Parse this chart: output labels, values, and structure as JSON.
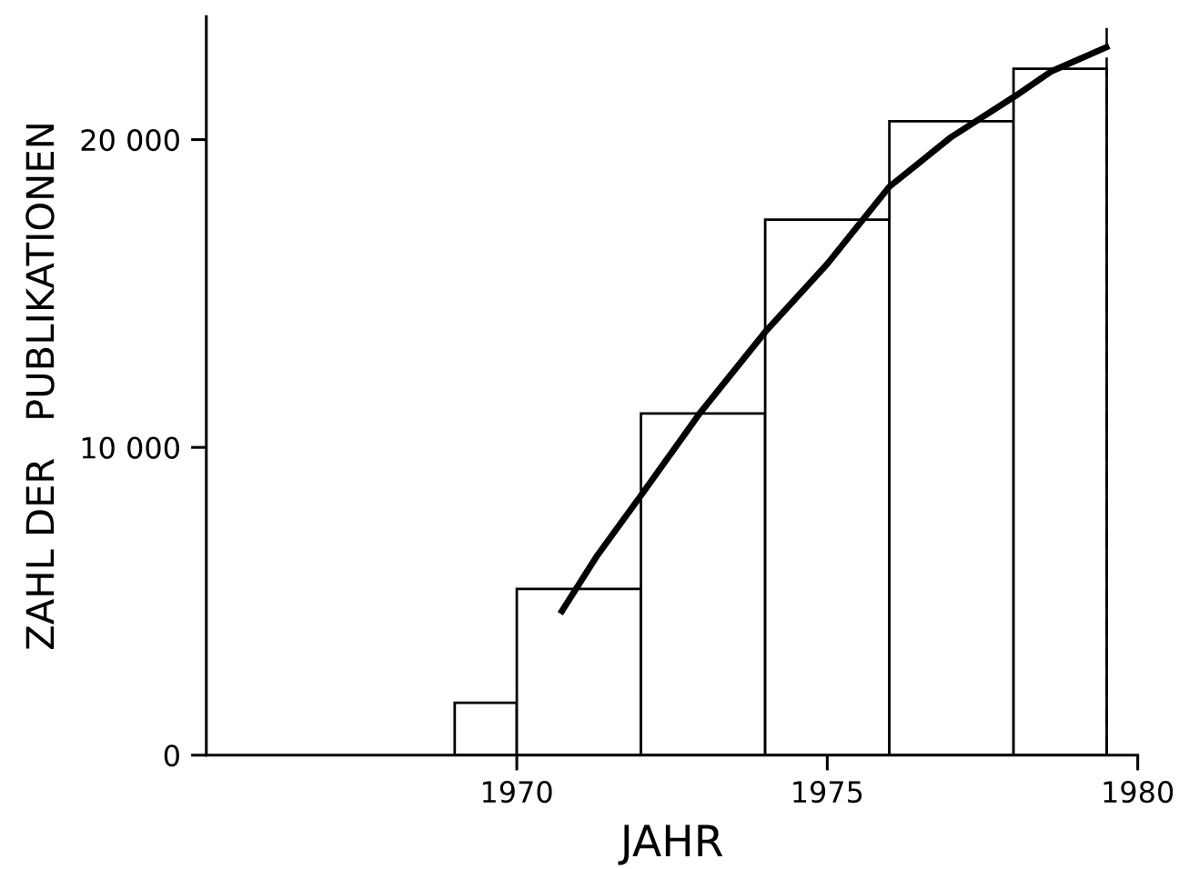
{
  "chart_data": {
    "type": "histogram",
    "xlabel": "JAHR",
    "ylabel": "ZAHL DER   PUBLIKATIONEN",
    "bins": [
      1969,
      1970,
      1972,
      1974,
      1976,
      1978,
      1979.5
    ],
    "values": [
      1700,
      5400,
      11100,
      17400,
      20600,
      22300
    ],
    "color": "#000000",
    "series": [
      {
        "type": "line",
        "color": "#000000",
        "x": [
          1970.7,
          1971.3,
          1972,
          1972.94,
          1974,
          1975,
          1976,
          1977,
          1978.03,
          1978.6,
          1979.54
        ],
        "values": [
          4600,
          6500,
          8440,
          11090,
          13750,
          15960,
          18470,
          20090,
          21420,
          22210,
          23040
        ]
      }
    ],
    "xlim": [
      1965,
      1980
    ],
    "xticks": [
      1970,
      1975,
      1980
    ],
    "ylim": [
      0,
      24000
    ],
    "yticks": [
      0,
      {
        "value": 10000,
        "label": "10 000"
      },
      {
        "value": 20000,
        "label": "20 000"
      }
    ],
    "ref_lines": [
      {
        "axis": "x",
        "value": 1979.5,
        "line_style": "dashed",
        "color": "#000000"
      }
    ],
    "grid": false,
    "legend": false
  }
}
